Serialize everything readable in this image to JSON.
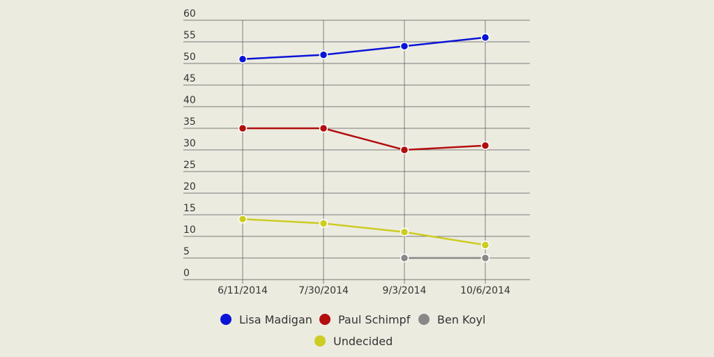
{
  "chart_data": {
    "type": "line",
    "categories": [
      "6/11/2014",
      "7/30/2014",
      "9/3/2014",
      "10/6/2014"
    ],
    "series": [
      {
        "name": "Lisa Madigan",
        "color": "#0a14d6",
        "values": [
          51,
          52,
          54,
          56
        ]
      },
      {
        "name": "Paul Schimpf",
        "color": "#b30d0d",
        "values": [
          35,
          35,
          30,
          31
        ]
      },
      {
        "name": "Ben Koyl",
        "color": "#888888",
        "values": [
          null,
          null,
          5,
          5
        ]
      },
      {
        "name": "Undecided",
        "color": "#cccc22",
        "values": [
          14,
          13,
          11,
          8
        ]
      }
    ],
    "ylim": [
      0,
      60
    ],
    "yticks": [
      0,
      5,
      10,
      15,
      20,
      25,
      30,
      35,
      40,
      45,
      50,
      55,
      60
    ],
    "grid": true
  }
}
